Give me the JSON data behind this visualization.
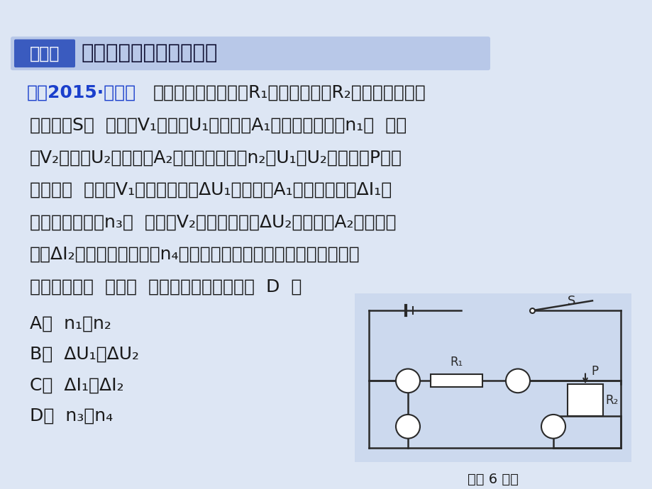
{
  "bg_color": "#dde6f4",
  "header_bar_color": "#b8c8e8",
  "header_badge_color": "#3a5bbf",
  "header_badge_text": "类型二",
  "header_title": "滑动变阻器引起电路变化",
  "text_color": "#1a1a1a",
  "blue_text": "#1a3fcc",
  "example_prefix": "例〈2015·内江〉",
  "line1": "如图所示的电路中，R₁是定值电阻，R₂是滑动变阻器。",
  "line2": "闭合开关S，  电压表V₁的示数U₁与电流表A₁的示数的比值为n₁，  电压",
  "line3": "表V₂的示数U₂与电流表A₂的示数的比值为n₂且U₁＜U₂；当滑片P向左",
  "line4": "移动后，  电压表V₁示数的变化量ΔU₁和电流表A₁示数的变化量ΔI₁的",
  "line5": "比值的绝对值为n₃，  电压表V₂示数的变化量ΔU₂和电流表A₂示数的变",
  "line6": "化量ΔI₂的比值的绝对值为n₄。若不计电表的电阻对电路的影响且电",
  "line7": "源电压恒定，  那么，  下列判断中正确的是（  D  ）",
  "choiceA": "A．  n₁＞n₂",
  "choiceB": "B．  ΔU₁＜ΔU₂",
  "choiceC": "C．  ΔI₁＜ΔI₂",
  "choiceD": "D．  n₃＝n₄",
  "circuit_caption": "（第 6 题）",
  "font_size_title": 21,
  "font_size_body": 18,
  "font_size_badge": 17,
  "font_size_choice": 18,
  "font_size_caption": 14,
  "circ_bg": "#ccd9ee"
}
